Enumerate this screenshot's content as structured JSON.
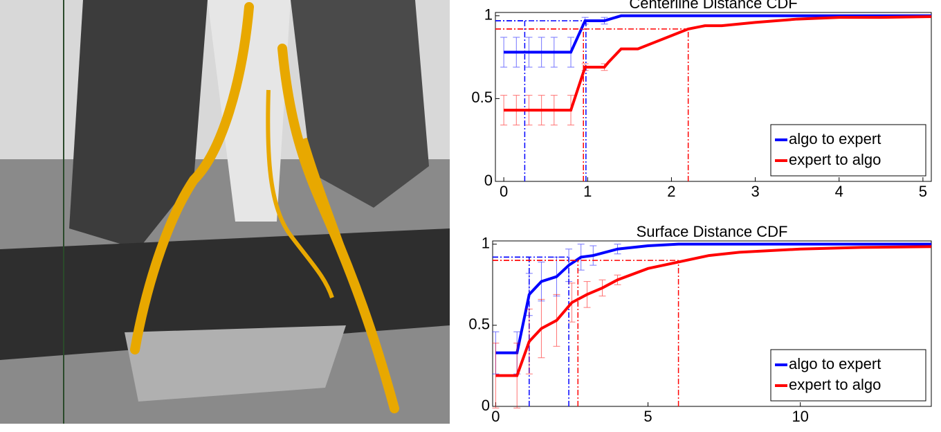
{
  "chart_data": [
    {
      "type": "line",
      "title": "Centerline Distance CDF",
      "xlim": [
        -0.1,
        5.1
      ],
      "ylim": [
        0,
        1.02
      ],
      "xticks": [
        0,
        1,
        2,
        3,
        4,
        5
      ],
      "yticks": [
        0,
        0.5,
        1
      ],
      "legend": "lower right",
      "series": [
        {
          "name": "algo to expert",
          "color": "#0000ff",
          "x": [
            0,
            0.8,
            0.97,
            1.2,
            1.4,
            2,
            3,
            4,
            5.1
          ],
          "values": [
            0.78,
            0.78,
            0.97,
            0.97,
            1,
            1,
            1,
            1,
            1
          ],
          "error_bars": [
            {
              "x": 0,
              "y": 0.78,
              "err": 0.09
            },
            {
              "x": 0.15,
              "y": 0.78,
              "err": 0.09
            },
            {
              "x": 0.3,
              "y": 0.78,
              "err": 0.09
            },
            {
              "x": 0.45,
              "y": 0.78,
              "err": 0.09
            },
            {
              "x": 0.6,
              "y": 0.78,
              "err": 0.09
            },
            {
              "x": 0.8,
              "y": 0.78,
              "err": 0.09
            },
            {
              "x": 0.97,
              "y": 0.97,
              "err": 0.02
            },
            {
              "x": 1.2,
              "y": 0.97,
              "err": 0.02
            }
          ],
          "markers": [
            {
              "x": 0.25,
              "y": 0.97
            },
            {
              "x": 0.98,
              "y": 0.97
            }
          ]
        },
        {
          "name": "expert to algo",
          "color": "#ff0000",
          "x": [
            0,
            0.8,
            0.97,
            1.2,
            1.25,
            1.4,
            1.6,
            1.8,
            2.0,
            2.2,
            2.4,
            2.6,
            3,
            3.5,
            4,
            4.5,
            5.1
          ],
          "values": [
            0.43,
            0.43,
            0.69,
            0.69,
            0.72,
            0.8,
            0.8,
            0.84,
            0.88,
            0.92,
            0.94,
            0.94,
            0.96,
            0.98,
            0.99,
            0.99,
            0.995
          ],
          "error_bars": [
            {
              "x": 0,
              "y": 0.43,
              "err": 0.09
            },
            {
              "x": 0.15,
              "y": 0.43,
              "err": 0.09
            },
            {
              "x": 0.3,
              "y": 0.43,
              "err": 0.09
            },
            {
              "x": 0.45,
              "y": 0.43,
              "err": 0.09
            },
            {
              "x": 0.6,
              "y": 0.43,
              "err": 0.09
            },
            {
              "x": 0.8,
              "y": 0.43,
              "err": 0.09
            },
            {
              "x": 0.97,
              "y": 0.69,
              "err": 0.02
            },
            {
              "x": 1.2,
              "y": 0.69,
              "err": 0.02
            }
          ],
          "markers": [
            {
              "x": 0.95,
              "y": 0.92
            },
            {
              "x": 2.2,
              "y": 0.92
            }
          ]
        }
      ]
    },
    {
      "type": "line",
      "title": "Surface Distance CDF",
      "xlim": [
        -0.1,
        14.3
      ],
      "ylim": [
        0,
        1.02
      ],
      "xticks": [
        0,
        5,
        10
      ],
      "yticks": [
        0,
        0.5,
        1
      ],
      "legend": "lower right",
      "series": [
        {
          "name": "algo to expert",
          "color": "#0000ff",
          "x": [
            0,
            0.7,
            1.1,
            1.5,
            2,
            2.4,
            2.8,
            3.2,
            4,
            5,
            6,
            8,
            14.3
          ],
          "values": [
            0.33,
            0.33,
            0.69,
            0.77,
            0.8,
            0.87,
            0.92,
            0.93,
            0.97,
            0.99,
            1,
            1,
            1
          ],
          "error_bars": [
            {
              "x": 0,
              "y": 0.33,
              "err": 0.13
            },
            {
              "x": 0.7,
              "y": 0.33,
              "err": 0.13
            },
            {
              "x": 1.1,
              "y": 0.69,
              "err": 0.13
            },
            {
              "x": 1.5,
              "y": 0.77,
              "err": 0.12
            },
            {
              "x": 2,
              "y": 0.8,
              "err": 0.12
            },
            {
              "x": 2.4,
              "y": 0.87,
              "err": 0.1
            },
            {
              "x": 2.8,
              "y": 0.92,
              "err": 0.08
            },
            {
              "x": 3.2,
              "y": 0.93,
              "err": 0.06
            },
            {
              "x": 4,
              "y": 0.97,
              "err": 0.03
            }
          ],
          "markers": [
            {
              "x": 1.1,
              "y": 0.92
            },
            {
              "x": 2.4,
              "y": 0.92
            }
          ]
        },
        {
          "name": "expert to algo",
          "color": "#ff0000",
          "x": [
            0,
            0.7,
            1.1,
            1.5,
            2,
            2.5,
            3,
            3.5,
            4,
            5,
            6,
            7,
            8,
            10,
            12,
            14.3
          ],
          "values": [
            0.19,
            0.19,
            0.4,
            0.48,
            0.53,
            0.64,
            0.69,
            0.73,
            0.78,
            0.85,
            0.89,
            0.93,
            0.95,
            0.97,
            0.98,
            0.985
          ],
          "error_bars": [
            {
              "x": 0,
              "y": 0.19,
              "err": 0.2
            },
            {
              "x": 0.7,
              "y": 0.19,
              "err": 0.2
            },
            {
              "x": 1.1,
              "y": 0.4,
              "err": 0.2
            },
            {
              "x": 1.5,
              "y": 0.48,
              "err": 0.18
            },
            {
              "x": 2,
              "y": 0.53,
              "err": 0.16
            },
            {
              "x": 2.5,
              "y": 0.64,
              "err": 0.12
            },
            {
              "x": 3,
              "y": 0.69,
              "err": 0.08
            },
            {
              "x": 3.5,
              "y": 0.73,
              "err": 0.05
            },
            {
              "x": 4,
              "y": 0.78,
              "err": 0.03
            }
          ],
          "markers": [
            {
              "x": 2.7,
              "y": 0.9
            },
            {
              "x": 6,
              "y": 0.9
            }
          ]
        }
      ]
    }
  ]
}
